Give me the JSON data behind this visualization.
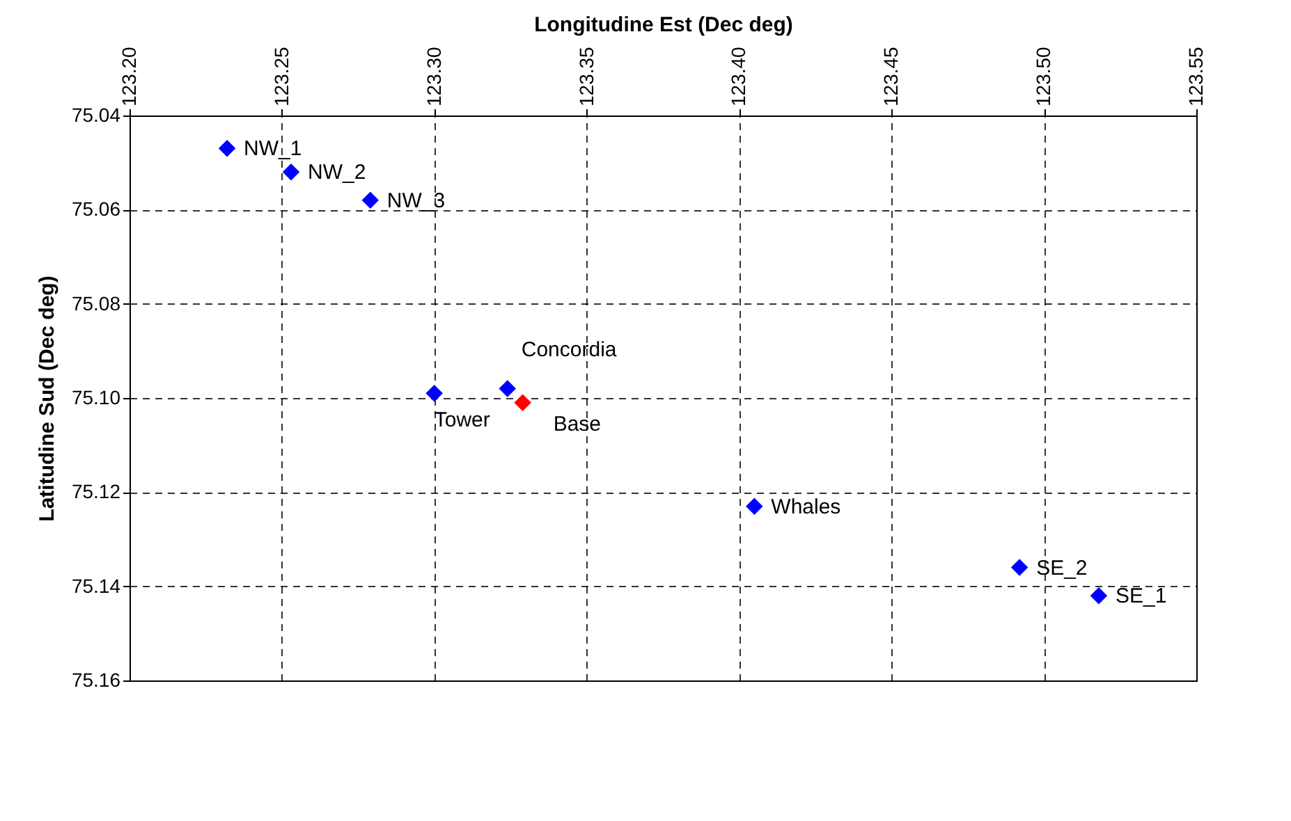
{
  "chart_data": {
    "type": "scatter",
    "xlabel": "Longitudine Est (Dec deg)",
    "ylabel": "Latitudine Sud (Dec deg)",
    "series": [
      {
        "color": "#0000ff",
        "x": [
          123.232,
          123.253,
          123.279,
          123.3,
          123.324,
          123.405,
          123.492,
          123.518
        ],
        "values": [
          75.047,
          75.052,
          75.058,
          75.099,
          75.098,
          75.123,
          75.136,
          75.142
        ]
      },
      {
        "color": "#ff0000",
        "x": [
          123.329
        ],
        "values": [
          75.101
        ]
      }
    ],
    "annotations": [
      {
        "text": "NW_1",
        "x": 123.232,
        "y": 75.047
      },
      {
        "text": "NW_2",
        "x": 123.253,
        "y": 75.052
      },
      {
        "text": "NW_3",
        "x": 123.279,
        "y": 75.058
      },
      {
        "text": "Tower",
        "x": 123.3,
        "y": 75.099
      },
      {
        "text": "Concordia",
        "x": 123.324,
        "y": 75.098
      },
      {
        "text": "Base",
        "x": 123.329,
        "y": 75.101
      },
      {
        "text": "Whales",
        "x": 123.405,
        "y": 75.123
      },
      {
        "text": "SE_2",
        "x": 123.492,
        "y": 75.136
      },
      {
        "text": "SE_1",
        "x": 123.518,
        "y": 75.142
      }
    ],
    "xlim": [
      123.2,
      123.55
    ],
    "xticks": [
      {
        "value": 123.2,
        "label": "123.20"
      },
      123.25,
      {
        "value": 123.3,
        "label": "123.30"
      },
      123.35,
      {
        "value": 123.4,
        "label": "123.40"
      },
      123.45,
      {
        "value": 123.5,
        "label": "123.50"
      },
      123.55
    ],
    "ylim": [
      75.16,
      75.04
    ],
    "yticks": [
      75.04,
      75.06,
      75.08,
      {
        "value": 75.1,
        "label": "75.10"
      },
      75.12,
      75.14,
      75.16
    ],
    "grid": true,
    "marker": "diamond"
  }
}
